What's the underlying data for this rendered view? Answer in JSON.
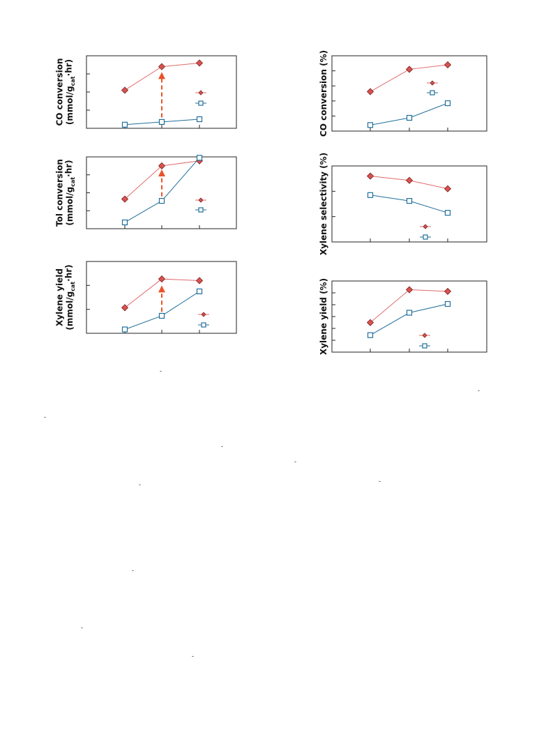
{
  "chart_data": [
    {
      "id": "left-co-conversion",
      "type": "line",
      "ylabel": [
        "CO conversion",
        "(mmol/g",
        "cat",
        "·hr)"
      ],
      "ylim": [
        0,
        4
      ],
      "x": [
        1,
        2,
        3
      ],
      "series": [
        {
          "marker": "diamond",
          "values": [
            2.1,
            3.4,
            3.6
          ]
        },
        {
          "marker": "square",
          "values": [
            0.2,
            0.35,
            0.5
          ]
        }
      ],
      "arrow": {
        "x": 2,
        "from": 0.6,
        "to": 3.1
      },
      "legend": "right"
    },
    {
      "id": "left-tol-conversion",
      "type": "line",
      "ylabel": [
        "Tol conversion",
        "(mmol/g",
        "cat",
        "·hr)"
      ],
      "ylim": [
        0,
        4
      ],
      "x": [
        1,
        2,
        3
      ],
      "series": [
        {
          "marker": "diamond",
          "values": [
            1.65,
            3.5,
            3.78
          ]
        },
        {
          "marker": "square",
          "values": [
            0.35,
            1.55,
            3.95
          ]
        }
      ],
      "arrow": {
        "x": 2,
        "from": 1.8,
        "to": 3.3
      },
      "legend": "right"
    },
    {
      "id": "left-xylene-yield",
      "type": "line",
      "ylabel": [
        "Xylene yield",
        "(mmol/g",
        "cat",
        "·hr)"
      ],
      "ylim": [
        0,
        3
      ],
      "x": [
        1,
        2,
        3
      ],
      "series": [
        {
          "marker": "diamond",
          "values": [
            1.07,
            2.27,
            2.2
          ]
        },
        {
          "marker": "square",
          "values": [
            0.16,
            0.73,
            1.75
          ]
        }
      ],
      "arrow": {
        "x": 2,
        "from": 0.9,
        "to": 2.0
      },
      "legend": "right"
    },
    {
      "id": "right-co-conversion",
      "type": "line",
      "ylabel": [
        "CO conversion (%)"
      ],
      "ylim": [
        0,
        5
      ],
      "x": [
        1,
        2,
        3
      ],
      "series": [
        {
          "marker": "diamond",
          "values": [
            2.62,
            4.1,
            4.4
          ]
        },
        {
          "marker": "square",
          "values": [
            0.4,
            0.88,
            1.85
          ]
        }
      ],
      "legend": "right"
    },
    {
      "id": "right-xylene-selectivity",
      "type": "line",
      "ylabel": [
        "Xylene selectivity (%)"
      ],
      "ylim": [
        0,
        3
      ],
      "x": [
        1,
        2,
        3
      ],
      "series": [
        {
          "marker": "diamond",
          "values": [
            2.6,
            2.43,
            2.1
          ]
        },
        {
          "marker": "square",
          "values": [
            1.85,
            1.62,
            1.15
          ]
        }
      ],
      "legend": "right"
    },
    {
      "id": "right-xylene-yield",
      "type": "line",
      "ylabel": [
        "Xylene yield (%)"
      ],
      "ylim": [
        0,
        6.5
      ],
      "x": [
        1,
        2,
        3
      ],
      "series": [
        {
          "marker": "diamond",
          "values": [
            2.7,
            5.7,
            5.55
          ]
        },
        {
          "marker": "square",
          "values": [
            1.55,
            3.6,
            4.4
          ]
        }
      ],
      "legend": "right"
    }
  ],
  "stray_marks": [
    "-",
    "-",
    "-",
    "-",
    "-",
    "-",
    "-",
    "-",
    "-",
    "-"
  ]
}
